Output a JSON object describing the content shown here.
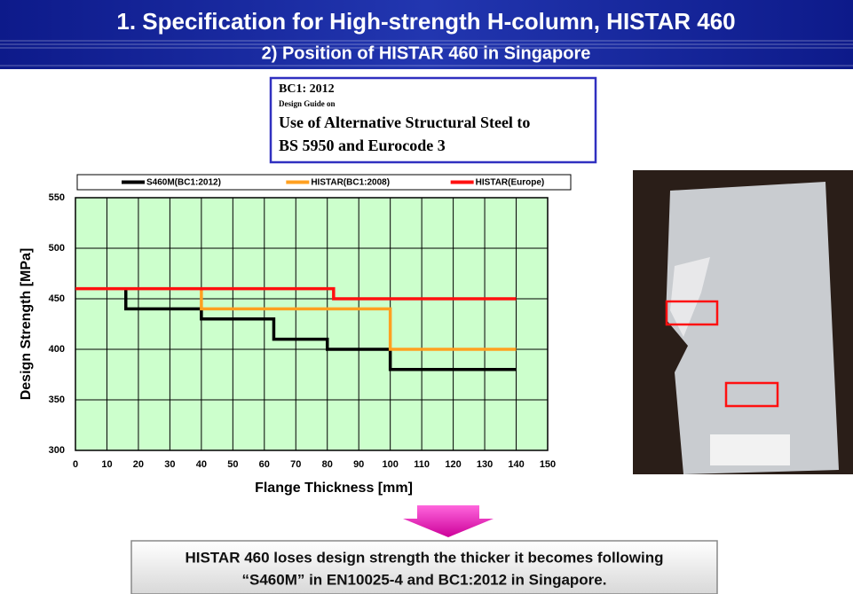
{
  "header": {
    "title": "1. Specification for High-strength H-column, HISTAR 460",
    "subtitle": "2) Position of HISTAR 460 in Singapore"
  },
  "reference": {
    "lines": [
      "BC1: 2012",
      "Design Guide on",
      "Use of Alternative Structural Steel to",
      "BS 5950 and Eurocode 3"
    ]
  },
  "chart_data": {
    "type": "line",
    "step": true,
    "x_label": "Flange Thickness [mm]",
    "y_label": "Design Strength [MPa]",
    "xlim": [
      0,
      150
    ],
    "xticks": [
      0,
      10,
      20,
      30,
      40,
      50,
      60,
      70,
      80,
      90,
      100,
      110,
      120,
      130,
      140,
      150
    ],
    "ylim": [
      300,
      550
    ],
    "yticks": [
      300,
      350,
      400,
      450,
      500,
      550
    ],
    "grid": true,
    "background": "#ccffcc",
    "legend": "top",
    "series": [
      {
        "name": "S460M(BC1:2012)",
        "color": "#000000",
        "x": [
          16,
          16,
          40,
          40,
          63,
          63,
          80,
          80,
          100,
          100,
          140
        ],
        "values": [
          460,
          440,
          440,
          430,
          430,
          410,
          410,
          400,
          400,
          380,
          380
        ]
      },
      {
        "name": "HISTAR(BC1:2008)",
        "color": "#ffa020",
        "x": [
          40,
          40,
          100,
          100,
          140
        ],
        "values": [
          460,
          440,
          440,
          400,
          400
        ]
      },
      {
        "name": "HISTAR(Europe)",
        "color": "#ff1010",
        "x": [
          0,
          82,
          82,
          140
        ],
        "values": [
          460,
          460,
          450,
          450
        ]
      }
    ]
  },
  "conclusion": {
    "lines": [
      "HISTAR 460 loses design strength the thicker it becomes following",
      "“S460M” in EN10025-4 and BC1:2012 in Singapore."
    ]
  }
}
